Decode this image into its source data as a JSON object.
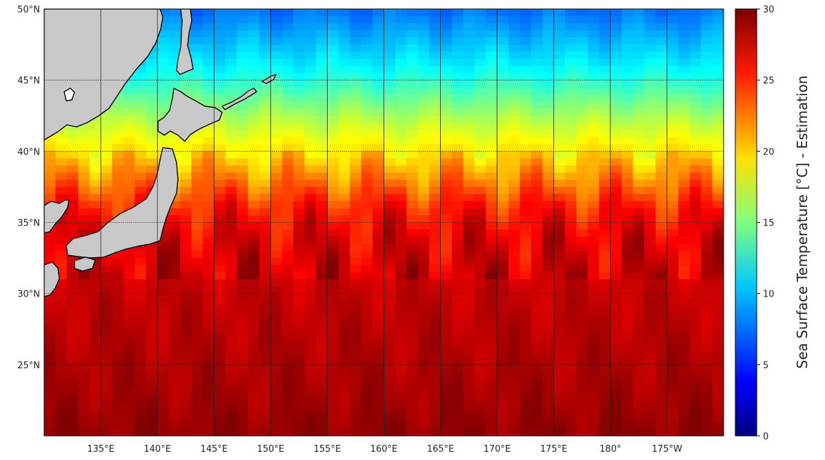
{
  "map": {
    "lon_ticks": [
      {
        "lon": 135,
        "label": "135°E"
      },
      {
        "lon": 140,
        "label": "140°E"
      },
      {
        "lon": 145,
        "label": "145°E"
      },
      {
        "lon": 150,
        "label": "150°E"
      },
      {
        "lon": 155,
        "label": "155°E"
      },
      {
        "lon": 160,
        "label": "160°E"
      },
      {
        "lon": 165,
        "label": "165°E"
      },
      {
        "lon": 170,
        "label": "170°E"
      },
      {
        "lon": 175,
        "label": "175°E"
      },
      {
        "lon": 180,
        "label": "180°"
      },
      {
        "lon": 185,
        "label": "175°W"
      }
    ],
    "lat_ticks": [
      {
        "lat": 50,
        "label": "50°N"
      },
      {
        "lat": 45,
        "label": "45°N"
      },
      {
        "lat": 40,
        "label": "40°N"
      },
      {
        "lat": 35,
        "label": "35°N"
      },
      {
        "lat": 30,
        "label": "30°N"
      },
      {
        "lat": 25,
        "label": "25°N"
      }
    ],
    "extent": {
      "lon_min": 130.0,
      "lon_max": 190.0,
      "lat_min": 20.0,
      "lat_max": 50.0
    },
    "land_color": "#c8c8c8",
    "coast_color": "#000000"
  },
  "chart_data": {
    "type": "heatmap",
    "colormap": "jet",
    "colorbar": {
      "label": "Sea Surface Temperature [°C] - Estimation",
      "range": [
        0,
        30
      ],
      "ticks": [
        0,
        5,
        10,
        15,
        20,
        25,
        30
      ]
    },
    "field_profile": {
      "lat": [
        50,
        48,
        46,
        44,
        42,
        40,
        38,
        36,
        34,
        32,
        30,
        26,
        22,
        20
      ],
      "sst": [
        7,
        9,
        11,
        14,
        17,
        19.5,
        22.5,
        25.5,
        27,
        27.5,
        28,
        28.5,
        29,
        29.5
      ]
    }
  }
}
